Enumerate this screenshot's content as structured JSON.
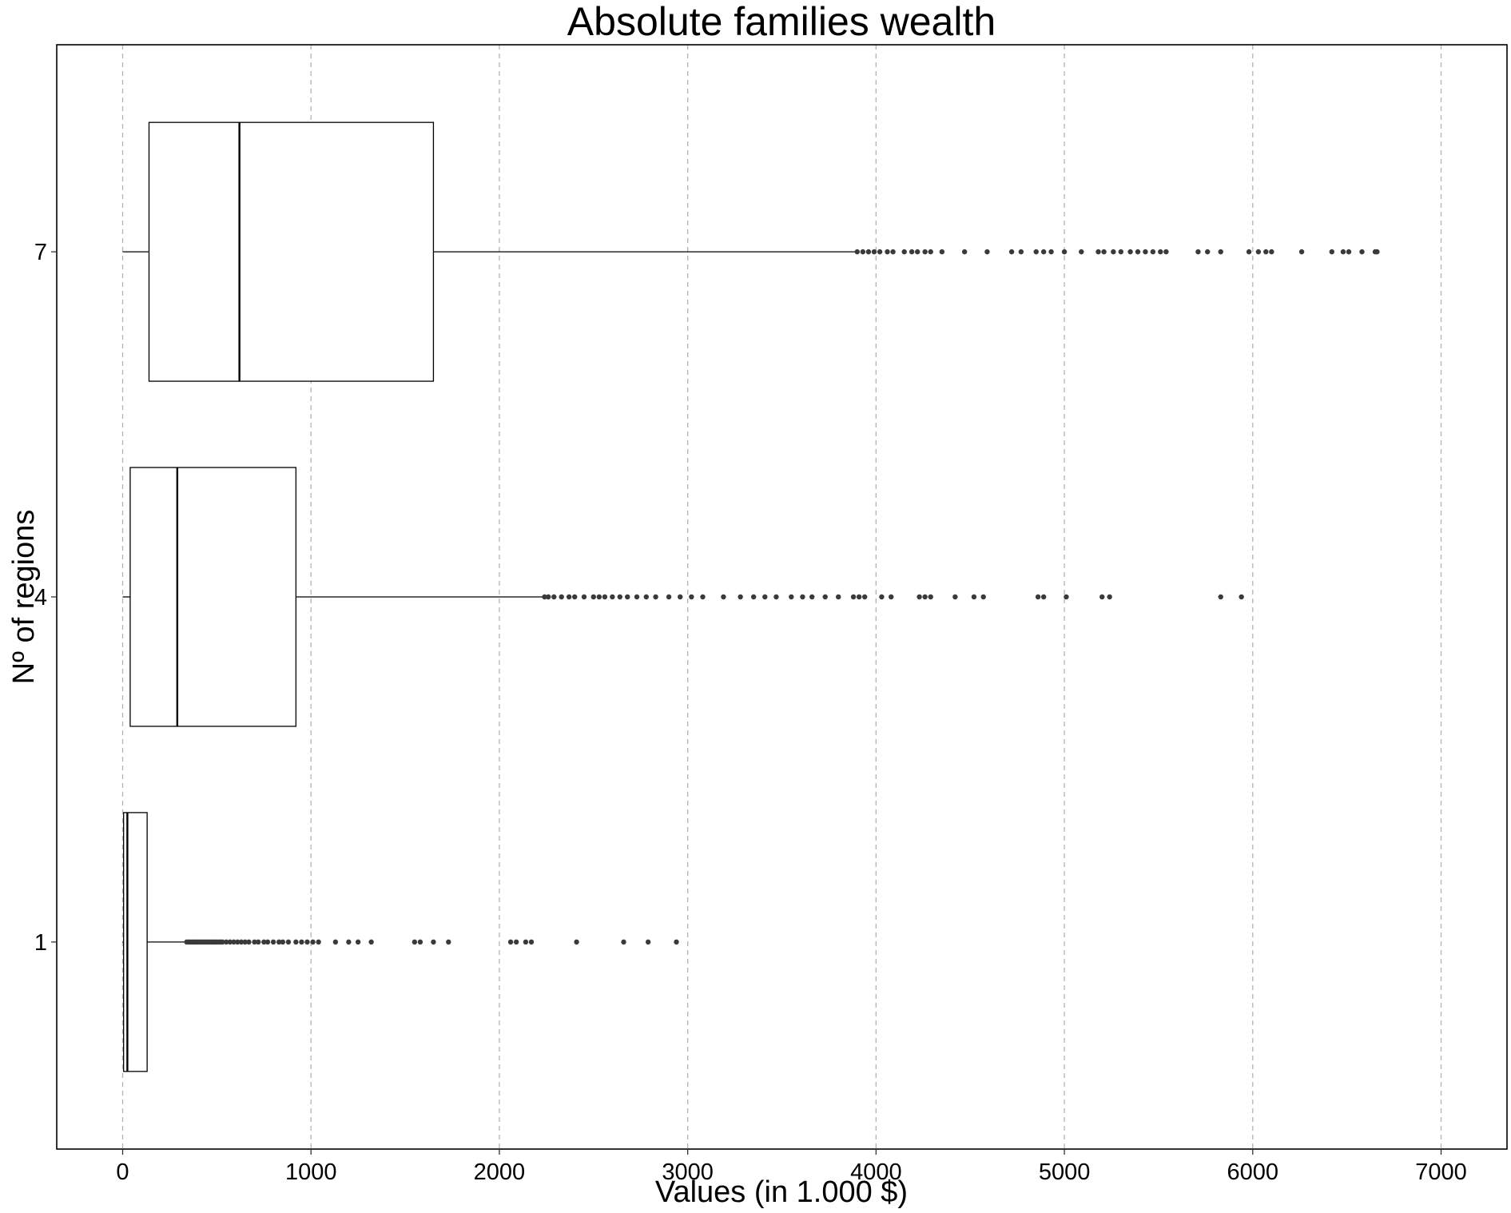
{
  "chart_data": {
    "type": "boxplot",
    "orientation": "horizontal",
    "title": "Absolute families wealth",
    "xlabel": "Values (in 1.000 $)",
    "ylabel": "Nº of regions",
    "xlim": [
      -350,
      7350
    ],
    "x_ticks": [
      0,
      1000,
      2000,
      3000,
      4000,
      5000,
      6000,
      7000
    ],
    "x_tick_labels": [
      "0",
      "1000",
      "2000",
      "3000",
      "4000",
      "5000",
      "6000",
      "7000"
    ],
    "categories": [
      "1",
      "4",
      "7"
    ],
    "grid": "vertical dashed",
    "series": [
      {
        "category": "1",
        "whisker_low": 0,
        "q1": 5,
        "median": 25,
        "q3": 130,
        "whisker_high": 330,
        "outliers": [
          340,
          350,
          360,
          370,
          380,
          390,
          400,
          410,
          420,
          430,
          440,
          450,
          460,
          470,
          480,
          490,
          500,
          510,
          520,
          530,
          550,
          570,
          590,
          610,
          630,
          650,
          670,
          700,
          720,
          750,
          770,
          800,
          830,
          850,
          880,
          920,
          950,
          980,
          1010,
          1040,
          1130,
          1200,
          1250,
          1320,
          1550,
          1580,
          1650,
          1730,
          2060,
          2090,
          2140,
          2170,
          2410,
          2660,
          2790,
          2940
        ]
      },
      {
        "category": "4",
        "whisker_low": 0,
        "q1": 40,
        "median": 290,
        "q3": 920,
        "whisker_high": 2230,
        "outliers": [
          2240,
          2260,
          2290,
          2330,
          2370,
          2400,
          2450,
          2500,
          2530,
          2560,
          2600,
          2640,
          2680,
          2730,
          2780,
          2830,
          2900,
          2960,
          3020,
          3080,
          3190,
          3280,
          3350,
          3410,
          3470,
          3550,
          3610,
          3660,
          3730,
          3800,
          3880,
          3910,
          3940,
          4030,
          4080,
          4230,
          4260,
          4290,
          4420,
          4520,
          4570,
          4860,
          4890,
          5010,
          5200,
          5240,
          5830,
          5940
        ]
      },
      {
        "category": "7",
        "whisker_low": 0,
        "q1": 140,
        "median": 620,
        "q3": 1650,
        "whisker_high": 3890,
        "outliers": [
          3900,
          3930,
          3960,
          3990,
          4020,
          4060,
          4090,
          4150,
          4190,
          4220,
          4260,
          4290,
          4350,
          4470,
          4590,
          4720,
          4770,
          4850,
          4890,
          4930,
          5000,
          5090,
          5180,
          5210,
          5260,
          5300,
          5350,
          5390,
          5430,
          5470,
          5510,
          5540,
          5710,
          5760,
          5830,
          5980,
          6030,
          6070,
          6100,
          6260,
          6420,
          6480,
          6510,
          6580,
          6650,
          6660
        ]
      }
    ]
  }
}
